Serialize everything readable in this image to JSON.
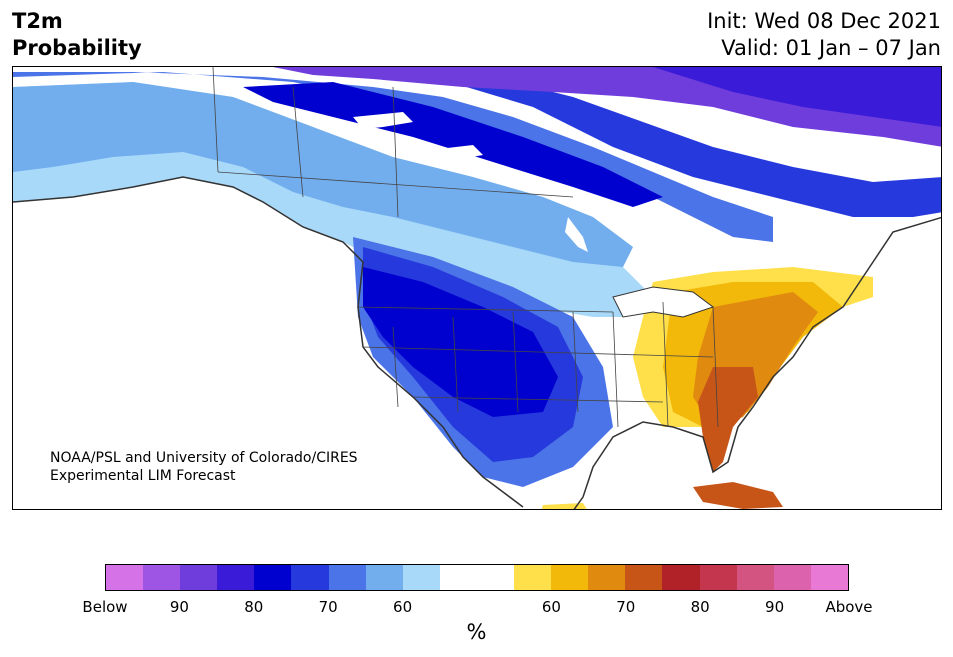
{
  "title": {
    "left_line1": "T2m",
    "left_line2": "Probability",
    "right_line1": "Init: Wed 08 Dec 2021",
    "right_line2": "Valid: 01 Jan – 07 Jan"
  },
  "credit": {
    "line1": "NOAA/PSL and University of Colorado/CIRES",
    "line2": "Experimental LIM Forecast"
  },
  "colorbar": {
    "colors": [
      "#d572e8",
      "#9f55e4",
      "#6f3ddc",
      "#3a1bd8",
      "#0000cf",
      "#2639dc",
      "#4a74e8",
      "#72aeee",
      "#a9d9f9",
      "#ffffff",
      "#ffffff",
      "#ffe04a",
      "#f2b80a",
      "#e08a10",
      "#c75518",
      "#b12128",
      "#c4354e",
      "#d35480",
      "#dd62ad",
      "#e87ad6"
    ],
    "labels": [
      "Below",
      "90",
      "80",
      "70",
      "60",
      "60",
      "70",
      "80",
      "90",
      "Above"
    ],
    "unit": "%"
  },
  "map_colors": {
    "purple": "#6f3ddc",
    "violet": "#3a1bd8",
    "deep_blue": "#0000cf",
    "blue": "#2639dc",
    "mid_blue": "#4a74e8",
    "light_blue": "#72aeee",
    "pale_blue": "#a9d9f9",
    "yellow": "#ffe04a",
    "gold": "#f2b80a",
    "orange": "#e08a10",
    "dark_orange": "#c75518",
    "coast": "#333333"
  }
}
